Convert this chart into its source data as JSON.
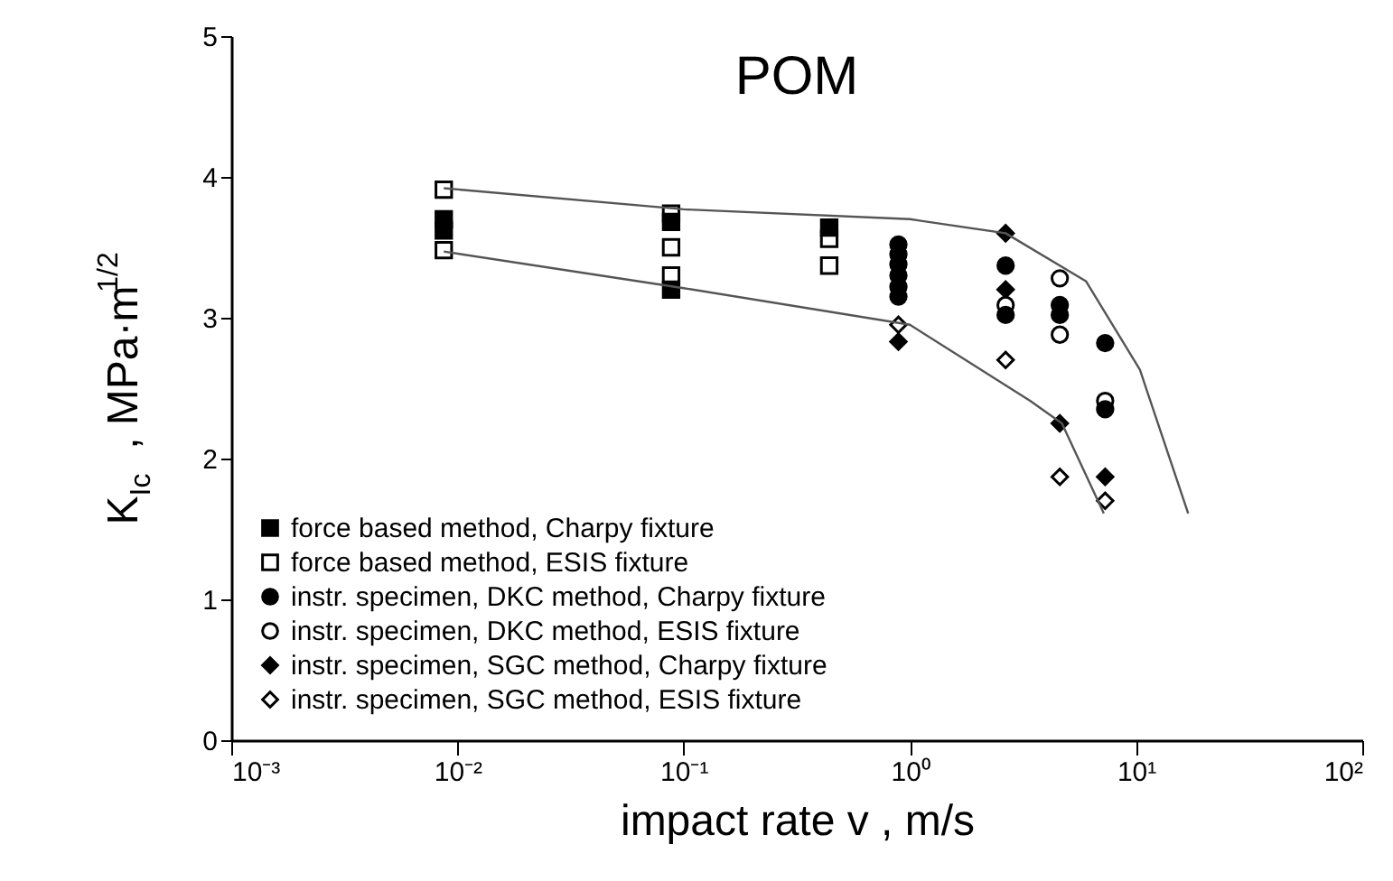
{
  "chart_data": {
    "type": "scatter",
    "title": "POM",
    "xlabel": "impact rate  v  ,     m/s",
    "ylabel": "K$_{Ic}$  ,    MPa·m$^{1/2}$",
    "log": "x",
    "xlim": [
      0.001,
      100
    ],
    "ylim": [
      0,
      5
    ],
    "xticks": [
      {
        "value": 0.001,
        "label": "10⁻³"
      },
      {
        "value": 0.01,
        "label": "10⁻²"
      },
      {
        "value": 0.1,
        "label": "10⁻¹"
      },
      {
        "value": 1,
        "label": "10⁰"
      },
      {
        "value": 10,
        "label": "10¹"
      },
      {
        "value": 100,
        "label": "10²"
      }
    ],
    "yticks": [
      0,
      1,
      2,
      3,
      4,
      5
    ],
    "grid": false,
    "legend": "bottom left",
    "series": [
      {
        "name": "force based method, Charpy fixture",
        "color": "#000000",
        "marker": "square",
        "x": [
          0.0087,
          0.0087,
          0.088,
          0.088,
          0.44
        ],
        "values": [
          3.7,
          3.62,
          3.68,
          3.2,
          3.64
        ]
      },
      {
        "name": "force based method, ESIS fixture",
        "color": "#ffffff",
        "marker": "square",
        "x": [
          0.0087,
          0.0087,
          0.088,
          0.088,
          0.088,
          0.44,
          0.44
        ],
        "values": [
          3.91,
          3.48,
          3.74,
          3.5,
          3.3,
          3.56,
          3.37
        ]
      },
      {
        "name": "instr. specimen, DKC method, Charpy fixture",
        "color": "#000000",
        "marker": "circle",
        "x": [
          0.89,
          0.89,
          0.89,
          0.89,
          0.89,
          0.89,
          2.65,
          2.65,
          4.6,
          4.6,
          7.3,
          7.3
        ],
        "values": [
          3.52,
          3.45,
          3.38,
          3.3,
          3.22,
          3.15,
          3.37,
          3.02,
          3.09,
          3.02,
          2.82,
          2.35
        ]
      },
      {
        "name": "instr. specimen, DKC method, ESIS fixture",
        "color": "#ffffff",
        "marker": "circle",
        "x": [
          2.65,
          4.6,
          4.6,
          7.3
        ],
        "values": [
          3.09,
          3.28,
          2.88,
          2.41
        ]
      },
      {
        "name": "instr. specimen, SGC method, Charpy fixture",
        "color": "#000000",
        "marker": "diamond",
        "x": [
          0.89,
          2.65,
          2.65,
          4.6,
          7.3
        ],
        "values": [
          2.83,
          3.6,
          3.2,
          2.25,
          1.87
        ]
      },
      {
        "name": "instr. specimen, SGC method, ESIS fixture",
        "color": "#ffffff",
        "marker": "diamond",
        "x": [
          0.89,
          2.65,
          4.6,
          7.3
        ],
        "values": [
          2.95,
          2.7,
          1.87,
          1.7
        ]
      },
      {
        "type": "line",
        "color": "#555555",
        "marker": "none",
        "x": [
          0.0087,
          0.1,
          1,
          2.65,
          6,
          10.4,
          17
        ],
        "values": [
          3.92,
          3.77,
          3.7,
          3.6,
          3.26,
          2.63,
          1.61
        ]
      },
      {
        "type": "line",
        "color": "#555555",
        "marker": "none",
        "x": [
          0.0087,
          0.1,
          1,
          3.4,
          4.7,
          7.2
        ],
        "values": [
          3.47,
          3.21,
          2.95,
          2.41,
          2.25,
          1.61
        ]
      }
    ]
  }
}
